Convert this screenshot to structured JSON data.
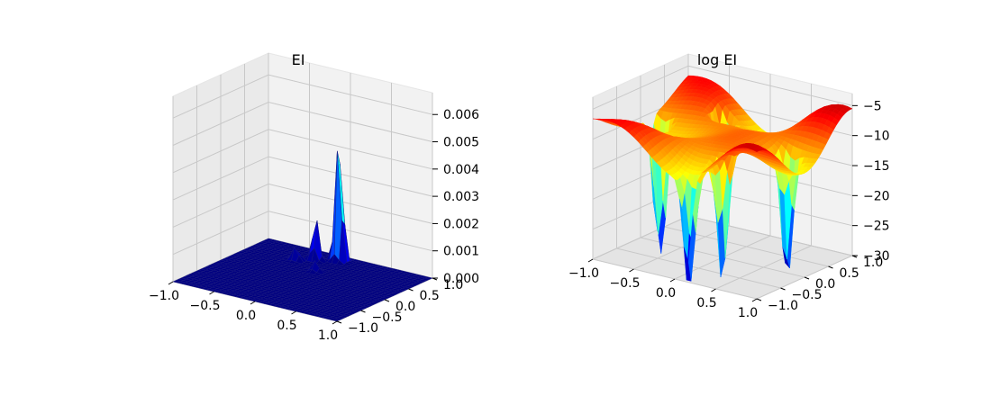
{
  "colors": {
    "colormap": "jet",
    "pane_back": "#f2f2f2",
    "pane_side": "#eaeaea",
    "pane_floor": "#e4e4e4",
    "grid": "#c8c8c8"
  },
  "chart_data": [
    {
      "type": "surface3d",
      "title": "EI",
      "xlabel": "",
      "ylabel": "",
      "zlabel": "",
      "xlim": [
        -1.0,
        1.0
      ],
      "ylim": [
        -1.0,
        1.0
      ],
      "zlim": [
        0.0,
        0.0068
      ],
      "grid": true,
      "colormap": "jet",
      "x_ticks": [
        "−1.0",
        "−0.5",
        "0.0",
        "0.5",
        "1.0"
      ],
      "y_ticks": [
        "−1.0",
        "−0.5",
        "0.0",
        "0.5",
        "1.0"
      ],
      "z_ticks": [
        "0.000",
        "0.001",
        "0.002",
        "0.003",
        "0.004",
        "0.005",
        "0.006"
      ],
      "z_tick_values": [
        0,
        0.001,
        0.002,
        0.003,
        0.004,
        0.005,
        0.006
      ],
      "peaks": [
        {
          "x": -0.05,
          "y": 0.85,
          "z": 0.0055
        },
        {
          "x": -0.25,
          "y": 0.7,
          "z": 0.0016
        },
        {
          "x": -0.4,
          "y": 0.55,
          "z": 0.0006
        },
        {
          "x": -0.05,
          "y": 0.35,
          "z": 0.0004
        }
      ]
    },
    {
      "type": "surface3d",
      "title": "log EI",
      "xlabel": "",
      "ylabel": "",
      "zlabel": "",
      "xlim": [
        -1.0,
        1.0
      ],
      "ylim": [
        -1.0,
        1.0
      ],
      "zlim": [
        -30,
        -3
      ],
      "grid": true,
      "colormap": "jet",
      "x_ticks": [
        "−1.0",
        "−0.5",
        "0.0",
        "0.5",
        "1.0"
      ],
      "y_ticks": [
        "−1.0",
        "−0.5",
        "0.0",
        "0.5",
        "1.0"
      ],
      "z_ticks": [
        "−5",
        "−10",
        "−15",
        "−20",
        "−25",
        "−30"
      ],
      "z_tick_values": [
        -5,
        -10,
        -15,
        -20,
        -25,
        -30
      ],
      "surface_range": [
        -30,
        -4.5
      ]
    }
  ]
}
